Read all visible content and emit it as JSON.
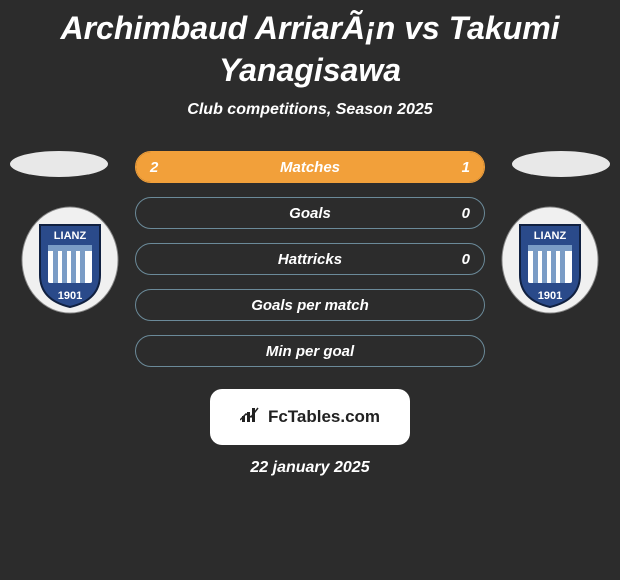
{
  "title": "Archimbaud ArriarÃ¡n vs Takumi Yanagisawa",
  "subtitle": "Club competitions, Season 2025",
  "date": "22 january 2025",
  "brand": "FcTables.com",
  "colors": {
    "background": "#2c2c2c",
    "highlight_fill": "#f2a03a",
    "highlight_border": "#f2a03a",
    "muted_border": "#6b8a99",
    "text": "#ffffff",
    "oval": "#e8e8e8"
  },
  "badge": {
    "top_text": "LIANZ",
    "bottom_text": "1901",
    "shield_color": "#2a4a8a",
    "outline_color": "#102040",
    "field_color": "#ffffff",
    "stripe_color": "#7a9cc6"
  },
  "stats": [
    {
      "label": "Matches",
      "left_value": "2",
      "right_value": "1",
      "left_fill_pct": 66,
      "right_fill_pct": 34,
      "variant": "highlight"
    },
    {
      "label": "Goals",
      "left_value": "",
      "right_value": "0",
      "left_fill_pct": 0,
      "right_fill_pct": 0,
      "variant": "muted"
    },
    {
      "label": "Hattricks",
      "left_value": "",
      "right_value": "0",
      "left_fill_pct": 0,
      "right_fill_pct": 0,
      "variant": "muted"
    },
    {
      "label": "Goals per match",
      "left_value": "",
      "right_value": "",
      "left_fill_pct": 0,
      "right_fill_pct": 0,
      "variant": "muted"
    },
    {
      "label": "Min per goal",
      "left_value": "",
      "right_value": "",
      "left_fill_pct": 0,
      "right_fill_pct": 0,
      "variant": "muted"
    }
  ]
}
